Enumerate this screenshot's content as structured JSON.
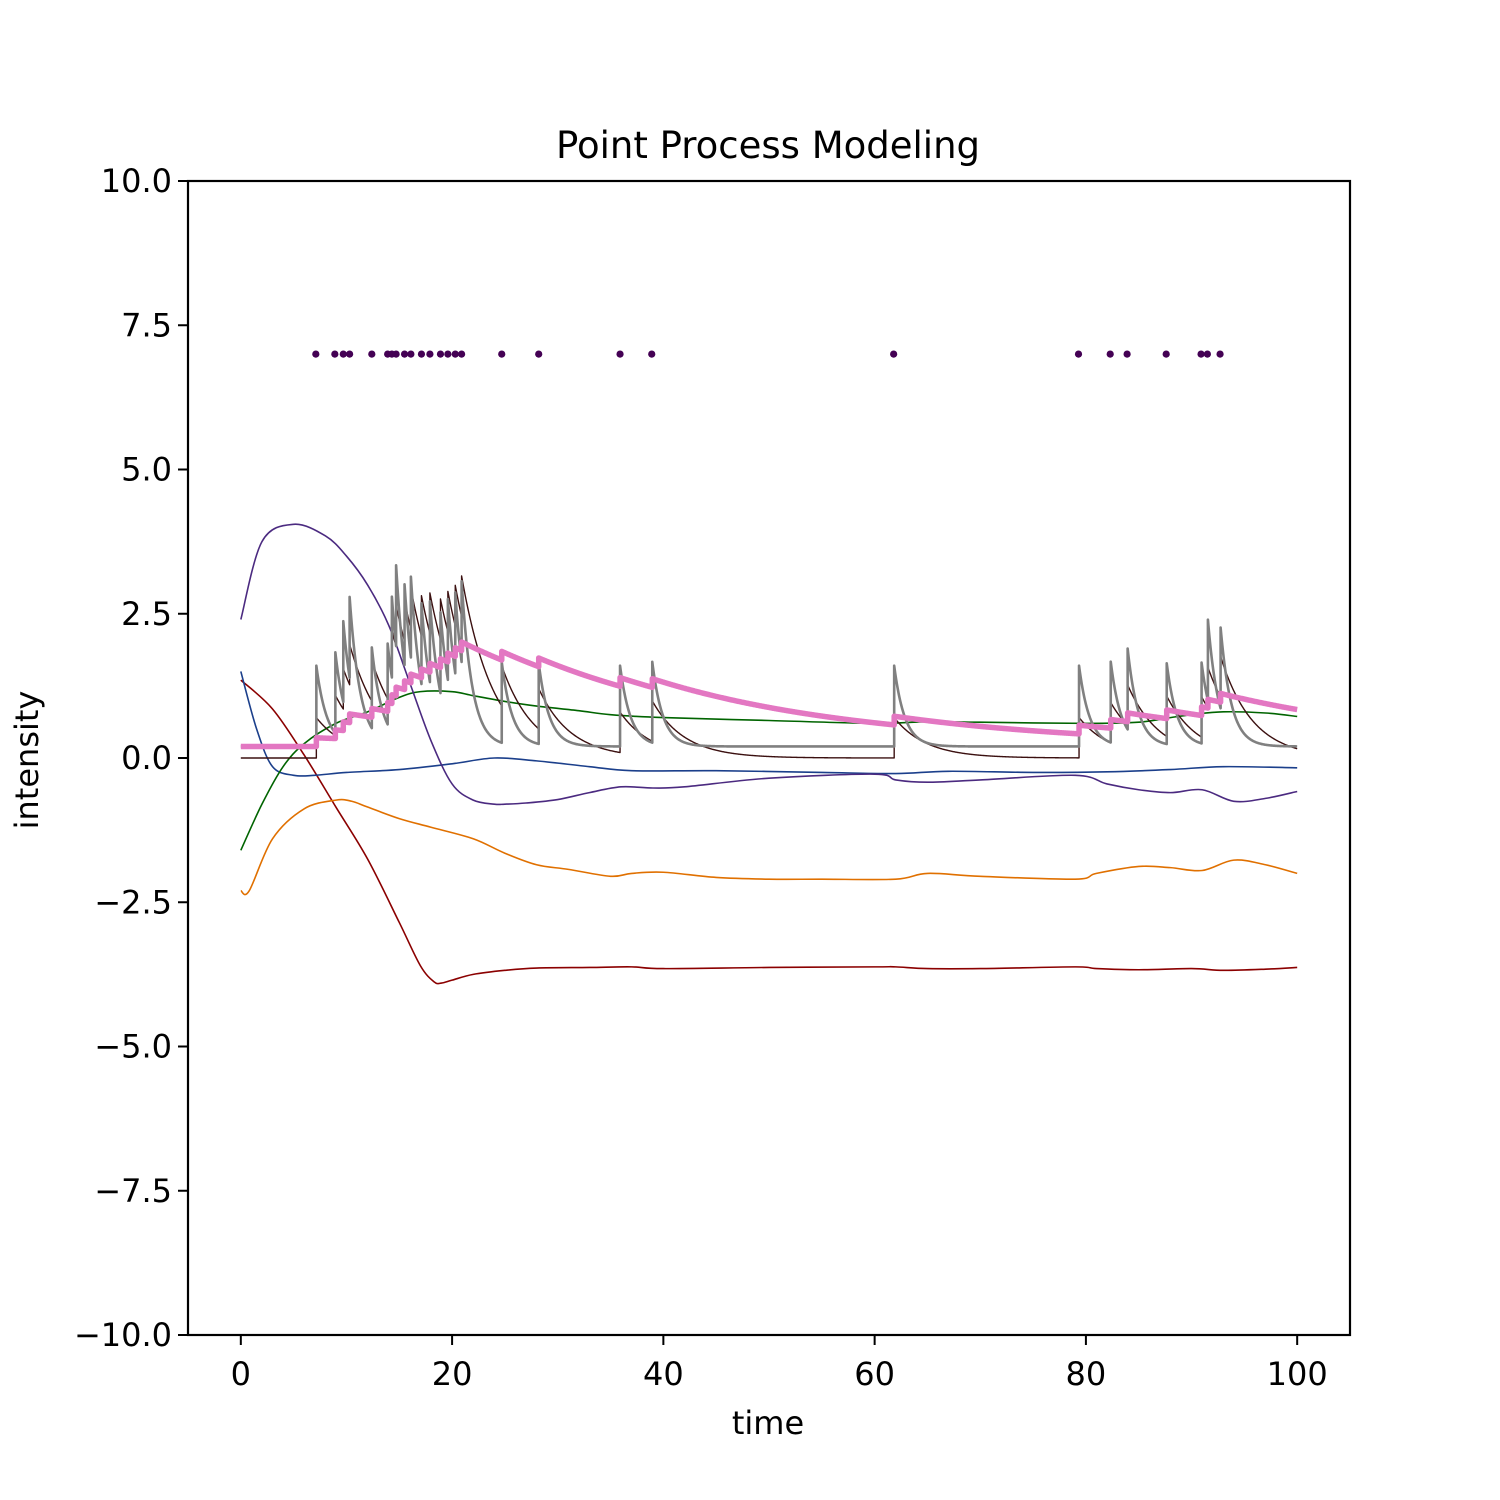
{
  "chart_data": {
    "type": "line",
    "title": "Point Process Modeling",
    "xlabel": "time",
    "ylabel": "intensity",
    "xlim": [
      -5,
      105
    ],
    "ylim": [
      -10,
      10
    ],
    "x_ticks": [
      0,
      20,
      40,
      60,
      80,
      100
    ],
    "x_tick_labels": [
      "0",
      "20",
      "40",
      "60",
      "80",
      "100"
    ],
    "y_ticks": [
      -10,
      -7.5,
      -5,
      -2.5,
      0,
      2.5,
      5,
      7.5,
      10
    ],
    "y_tick_labels": [
      "−10.0",
      "−7.5",
      "−5.0",
      "−2.5",
      "0.0",
      "2.5",
      "5.0",
      "7.5",
      "10.0"
    ],
    "grid": false,
    "events": {
      "y": 7,
      "color": "#440154",
      "x": [
        7.1,
        8.9,
        9.7,
        10.3,
        12.4,
        13.9,
        14.3,
        14.7,
        15.5,
        16.1,
        17.1,
        17.9,
        18.9,
        19.6,
        20.3,
        20.9,
        24.7,
        28.2,
        35.9,
        38.9,
        61.8,
        79.3,
        82.3,
        83.9,
        87.6,
        90.9,
        91.5,
        92.7
      ]
    },
    "series": [
      {
        "color": "#8b0000",
        "stroke": 1.6,
        "style": "smooth",
        "x": [
          0,
          3,
          6,
          9,
          12,
          15,
          17,
          18.3,
          19,
          20,
          22,
          25,
          28,
          33,
          37,
          40,
          50,
          60,
          62,
          65,
          70,
          79,
          81,
          85,
          90,
          93,
          97,
          100
        ],
        "y": [
          1.35,
          0.85,
          0.05,
          -0.85,
          -1.75,
          -2.85,
          -3.6,
          -3.88,
          -3.9,
          -3.85,
          -3.75,
          -3.68,
          -3.64,
          -3.63,
          -3.62,
          -3.65,
          -3.63,
          -3.62,
          -3.62,
          -3.65,
          -3.65,
          -3.62,
          -3.65,
          -3.67,
          -3.65,
          -3.68,
          -3.66,
          -3.63
        ]
      },
      {
        "color": "#e07000",
        "stroke": 1.6,
        "style": "smooth",
        "x": [
          0,
          0.8,
          3,
          6,
          9,
          10.5,
          12,
          15,
          18,
          22,
          25,
          28,
          31,
          35,
          37,
          40,
          45,
          50,
          55,
          62,
          65,
          70,
          79,
          81,
          85,
          88,
          91,
          94,
          97,
          100
        ],
        "y": [
          -2.3,
          -2.3,
          -1.4,
          -0.88,
          -0.73,
          -0.75,
          -0.85,
          -1.05,
          -1.2,
          -1.4,
          -1.65,
          -1.85,
          -1.93,
          -2.05,
          -2.0,
          -1.98,
          -2.07,
          -2.1,
          -2.1,
          -2.1,
          -2.0,
          -2.05,
          -2.1,
          -2.0,
          -1.88,
          -1.9,
          -1.95,
          -1.77,
          -1.85,
          -2.0
        ]
      },
      {
        "color": "#1b3f8b",
        "stroke": 1.6,
        "style": "smooth",
        "x": [
          0,
          1.5,
          3,
          5,
          7,
          10,
          15,
          20,
          24,
          28,
          33,
          37,
          45,
          55,
          62,
          67,
          75,
          82,
          88,
          93,
          100
        ],
        "y": [
          1.5,
          0.5,
          -0.15,
          -0.3,
          -0.3,
          -0.25,
          -0.2,
          -0.1,
          0.0,
          -0.05,
          -0.15,
          -0.22,
          -0.22,
          -0.25,
          -0.27,
          -0.23,
          -0.25,
          -0.24,
          -0.2,
          -0.15,
          -0.17
        ]
      },
      {
        "color": "#006400",
        "stroke": 1.6,
        "style": "smooth",
        "x": [
          0,
          2,
          4,
          6,
          9,
          12,
          15,
          17,
          20,
          22,
          25,
          28,
          32,
          35,
          40,
          50,
          60,
          65,
          70,
          80,
          85,
          88,
          90,
          93,
          97,
          100
        ],
        "y": [
          -1.6,
          -0.8,
          -0.15,
          0.25,
          0.6,
          0.8,
          1.05,
          1.15,
          1.15,
          1.08,
          0.98,
          0.9,
          0.82,
          0.75,
          0.7,
          0.65,
          0.6,
          0.63,
          0.62,
          0.6,
          0.62,
          0.7,
          0.75,
          0.8,
          0.78,
          0.72
        ]
      },
      {
        "color": "#4b2a80",
        "stroke": 1.6,
        "style": "smooth",
        "x": [
          0,
          2,
          5,
          8,
          10,
          12,
          14,
          16,
          18,
          20,
          22,
          24,
          25,
          27,
          30,
          33,
          36,
          39,
          42,
          50,
          60,
          62,
          65,
          70,
          79,
          82,
          85,
          88,
          91,
          94,
          97,
          100
        ],
        "y": [
          2.4,
          3.75,
          4.05,
          3.85,
          3.5,
          3.0,
          2.3,
          1.3,
          0.3,
          -0.45,
          -0.73,
          -0.8,
          -0.8,
          -0.78,
          -0.72,
          -0.6,
          -0.5,
          -0.52,
          -0.5,
          -0.35,
          -0.28,
          -0.38,
          -0.42,
          -0.38,
          -0.3,
          -0.45,
          -0.55,
          -0.6,
          -0.55,
          -0.75,
          -0.7,
          -0.58
        ]
      },
      {
        "color": "#3b1010",
        "stroke": 1.4,
        "style": "hawkes",
        "base": 0.0,
        "jump": 0.7,
        "decay": 0.33
      },
      {
        "color": "#808080",
        "stroke": 2.6,
        "style": "hawkes",
        "base": 0.2,
        "jump": 1.4,
        "decay": 1.0
      },
      {
        "color": "#e377c2",
        "stroke": 5.5,
        "style": "hawkes",
        "base": 0.2,
        "jump": 0.15,
        "decay": 0.05
      }
    ]
  }
}
